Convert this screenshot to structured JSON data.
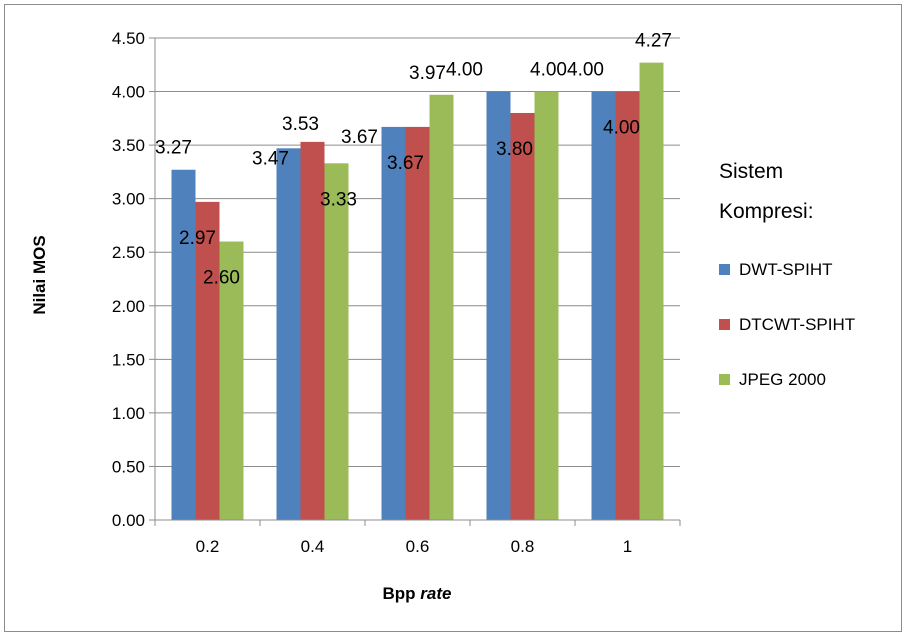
{
  "chart_data": {
    "type": "bar",
    "categories": [
      "0.2",
      "0.4",
      "0.6",
      "0.8",
      "1"
    ],
    "series": [
      {
        "name": "DWT-SPIHT",
        "color": "#4f81bd",
        "values": [
          3.27,
          3.47,
          3.67,
          4.0,
          4.0
        ],
        "labels": [
          "3.27",
          "3.47",
          "3.67",
          "4.00",
          "4.00"
        ]
      },
      {
        "name": "DTCWT-SPIHT",
        "color": "#c0504d",
        "values": [
          2.97,
          3.53,
          3.67,
          3.8,
          4.0
        ],
        "labels": [
          "2.97",
          "3.53",
          "3.67",
          "3.80",
          "4.00"
        ]
      },
      {
        "name": "JPEG 2000",
        "color": "#9bbb59",
        "values": [
          2.6,
          3.33,
          3.97,
          4.0,
          4.27
        ],
        "labels": [
          "2.60",
          "3.33",
          "3.97",
          "4.00",
          "4.27"
        ]
      }
    ],
    "y_ticks": [
      "0.00",
      "0.50",
      "1.00",
      "1.50",
      "2.00",
      "2.50",
      "3.00",
      "3.50",
      "4.00",
      "4.50"
    ],
    "ylim": [
      0,
      4.5
    ],
    "ylabel": "Nilai MOS",
    "xlabel_main": "Bpp ",
    "xlabel_italic": "rate",
    "legend_title_line1": "Sistem",
    "legend_title_line2": "Kompresi:",
    "grid": true,
    "legend_position": "right"
  }
}
